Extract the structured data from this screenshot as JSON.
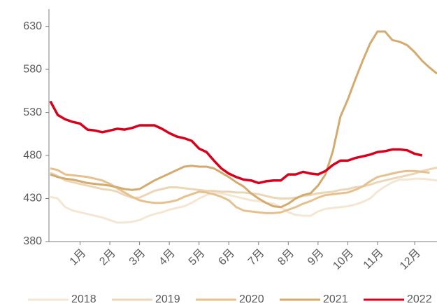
{
  "chart_data": {
    "type": "line",
    "categories": [
      null,
      null,
      null,
      null,
      "1月",
      null,
      null,
      null,
      "2月",
      null,
      null,
      null,
      "3月",
      null,
      null,
      null,
      "4月",
      null,
      null,
      null,
      "5月",
      null,
      null,
      null,
      "6月",
      null,
      null,
      null,
      "7月",
      null,
      null,
      null,
      "8月",
      null,
      null,
      null,
      "9月",
      null,
      null,
      null,
      "10月",
      null,
      null,
      null,
      "11月",
      null,
      null,
      null,
      null,
      "12月",
      null,
      null,
      null
    ],
    "ylim": [
      380,
      650
    ],
    "yticks": [
      380,
      430,
      480,
      530,
      580,
      630
    ],
    "grid": false,
    "legend": "bottom",
    "series": [
      {
        "name": "2018",
        "color": "#f5e6d3",
        "values": [
          432,
          430,
          420,
          416,
          414,
          412,
          410,
          408,
          405,
          402,
          402,
          403,
          405,
          409,
          412,
          414,
          417,
          419,
          421,
          425,
          430,
          434,
          437,
          436,
          434,
          432,
          430,
          428,
          427,
          425,
          424,
          420,
          414,
          411,
          410,
          410,
          415,
          418,
          419,
          420,
          421,
          423,
          426,
          430,
          438,
          444,
          449,
          452,
          452,
          453,
          453,
          452,
          451
        ]
      },
      {
        "name": "2019",
        "color": "#ecd6b8",
        "values": [
          460,
          456,
          451,
          449,
          447,
          445,
          443,
          441,
          440,
          438,
          434,
          431,
          431,
          435,
          439,
          441,
          443,
          443,
          442,
          441,
          440,
          439,
          439,
          438,
          438,
          437,
          437,
          436,
          435,
          433,
          431,
          430,
          430,
          431,
          433,
          434,
          436,
          437,
          438,
          440,
          441,
          443,
          444,
          446,
          449,
          451,
          453,
          455,
          457,
          459,
          462,
          464,
          466
        ]
      },
      {
        "name": "2020",
        "color": "#e6c18f",
        "values": [
          465,
          463,
          458,
          457,
          456,
          455,
          453,
          451,
          447,
          442,
          437,
          432,
          428,
          426,
          425,
          425,
          426,
          428,
          432,
          435,
          438,
          437,
          435,
          432,
          428,
          420,
          416,
          415,
          414,
          413,
          413,
          414,
          417,
          420,
          424,
          427,
          431,
          434,
          435,
          436,
          437,
          440,
          444,
          450,
          455,
          457,
          459,
          461,
          462,
          462,
          461,
          460,
          null
        ]
      },
      {
        "name": "2021",
        "color": "#d4aa6e",
        "values": [
          458,
          455,
          453,
          452,
          450,
          448,
          447,
          446,
          445,
          443,
          441,
          440,
          441,
          446,
          451,
          455,
          459,
          463,
          467,
          468,
          467,
          467,
          465,
          460,
          455,
          449,
          444,
          436,
          430,
          425,
          421,
          420,
          424,
          430,
          434,
          436,
          445,
          458,
          485,
          525,
          545,
          568,
          590,
          610,
          624,
          624,
          614,
          612,
          608,
          600,
          590,
          582,
          575
        ]
      },
      {
        "name": "2022",
        "color": "#d9001b",
        "values": [
          543,
          527,
          522,
          519,
          517,
          510,
          509,
          507,
          509,
          511,
          510,
          512,
          515,
          515,
          515,
          511,
          506,
          502,
          500,
          497,
          488,
          484,
          474,
          465,
          459,
          455,
          452,
          451,
          448,
          450,
          451,
          451,
          458,
          458,
          461,
          459,
          458,
          462,
          469,
          474,
          474,
          477,
          479,
          481,
          484,
          485,
          487,
          487,
          486,
          482,
          480,
          null,
          null
        ]
      }
    ]
  }
}
